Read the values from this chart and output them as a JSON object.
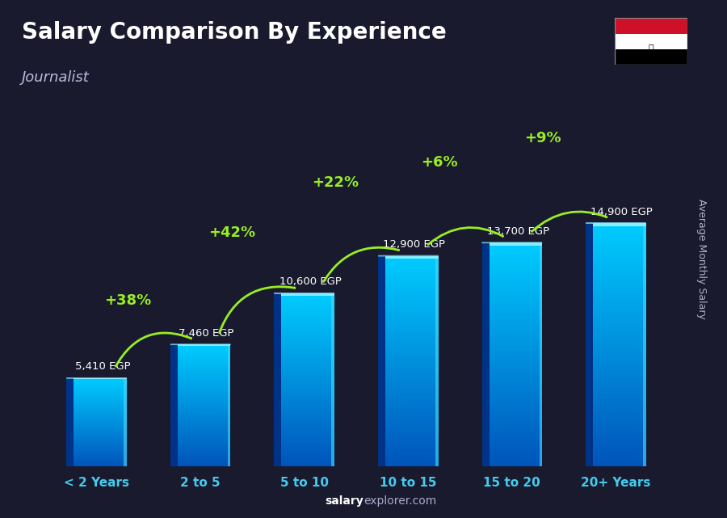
{
  "title": "Salary Comparison By Experience",
  "subtitle": "Journalist",
  "ylabel": "Average Monthly Salary",
  "xlabel_labels": [
    "< 2 Years",
    "2 to 5",
    "5 to 10",
    "10 to 15",
    "15 to 20",
    "20+ Years"
  ],
  "values": [
    5410,
    7460,
    10600,
    12900,
    13700,
    14900
  ],
  "value_labels": [
    "5,410 EGP",
    "7,460 EGP",
    "10,600 EGP",
    "12,900 EGP",
    "13,700 EGP",
    "14,900 EGP"
  ],
  "pct_labels": [
    "+38%",
    "+42%",
    "+22%",
    "+6%",
    "+9%"
  ],
  "bg_color": "#1a1a2e",
  "bar_grad_bottom": "#0055bb",
  "bar_grad_top": "#00ccff",
  "bar_left_shadow": "#003388",
  "bar_right_highlight": "#44ddff",
  "bar_top_highlight": "#88eeff",
  "title_color": "#ffffff",
  "subtitle_color": "#bbbbdd",
  "value_label_color": "#ffffff",
  "tick_color": "#44ccee",
  "pct_color": "#99ee22",
  "arrow_color": "#99ee22",
  "watermark_salary": "salary",
  "watermark_explorer": "explorer.com",
  "watermark_color1": "#ffffff",
  "watermark_color2": "#aaaacc",
  "ylabel_color": "#ccccdd",
  "bar_width": 0.58,
  "bar_depth": 0.07
}
